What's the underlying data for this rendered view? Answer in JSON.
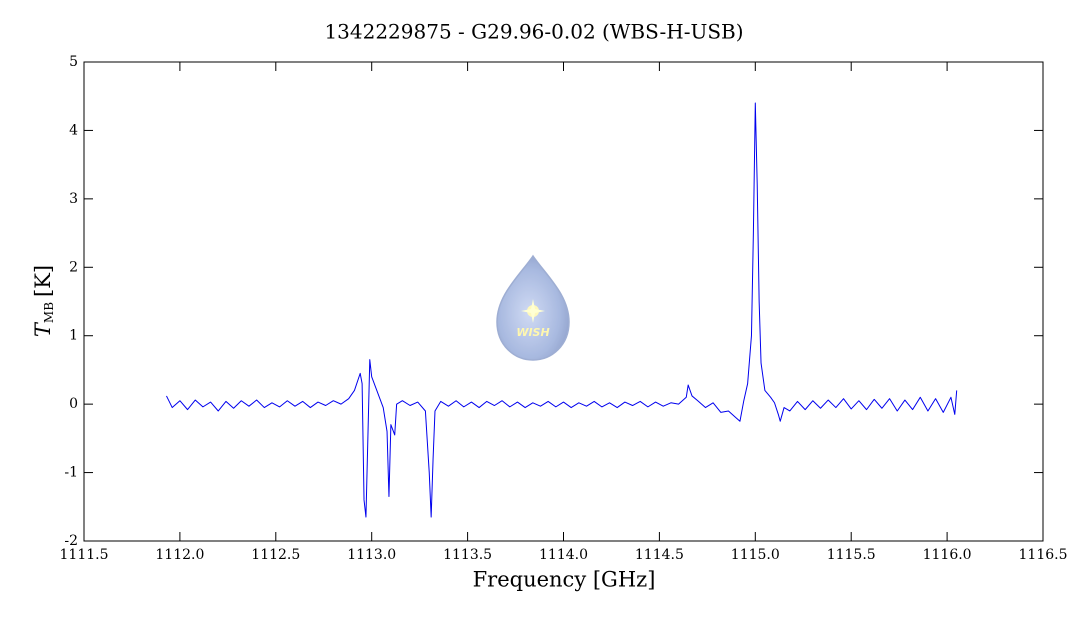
{
  "chart_data": {
    "type": "line",
    "title": "1342229875 - G29.96-0.02 (WBS-H-USB)",
    "x_label": "Frequency [GHz]",
    "y_label": {
      "symbol": "T",
      "subscript": "MB",
      "unit": "[K]"
    },
    "logo_text": "WISH",
    "xlim": [
      1111.5,
      1116.5
    ],
    "ylim": [
      -2,
      5
    ],
    "xticks": [
      1111.5,
      {
        "value": 1112,
        "label": "1112.0"
      },
      1112.5,
      {
        "value": 1113,
        "label": "1113.0"
      },
      1113.5,
      {
        "value": 1114,
        "label": "1114.0"
      },
      1114.5,
      {
        "value": 1115,
        "label": "1115.0"
      },
      1115.5,
      {
        "value": 1116,
        "label": "1116.0"
      },
      1116.5
    ],
    "yticks": [
      -2,
      -1,
      0,
      1,
      2,
      3,
      4,
      5
    ],
    "grid": false,
    "x": [
      1111.93,
      1111.96,
      1112.0,
      1112.04,
      1112.08,
      1112.12,
      1112.16,
      1112.2,
      1112.24,
      1112.28,
      1112.32,
      1112.36,
      1112.4,
      1112.44,
      1112.48,
      1112.52,
      1112.56,
      1112.6,
      1112.64,
      1112.68,
      1112.72,
      1112.76,
      1112.8,
      1112.84,
      1112.88,
      1112.91,
      1112.94,
      1112.95,
      1112.96,
      1112.97,
      1112.98,
      1112.99,
      1113.0,
      1113.02,
      1113.04,
      1113.06,
      1113.08,
      1113.09,
      1113.1,
      1113.12,
      1113.13,
      1113.16,
      1113.2,
      1113.24,
      1113.28,
      1113.3,
      1113.31,
      1113.32,
      1113.33,
      1113.36,
      1113.4,
      1113.44,
      1113.48,
      1113.52,
      1113.56,
      1113.6,
      1113.64,
      1113.68,
      1113.72,
      1113.76,
      1113.8,
      1113.84,
      1113.88,
      1113.92,
      1113.96,
      1114.0,
      1114.04,
      1114.08,
      1114.12,
      1114.16,
      1114.2,
      1114.24,
      1114.28,
      1114.32,
      1114.36,
      1114.4,
      1114.44,
      1114.48,
      1114.52,
      1114.56,
      1114.6,
      1114.64,
      1114.65,
      1114.67,
      1114.7,
      1114.74,
      1114.78,
      1114.82,
      1114.86,
      1114.9,
      1114.92,
      1114.94,
      1114.96,
      1114.98,
      1114.99,
      1115.0,
      1115.01,
      1115.02,
      1115.03,
      1115.05,
      1115.08,
      1115.1,
      1115.12,
      1115.13,
      1115.15,
      1115.18,
      1115.22,
      1115.26,
      1115.3,
      1115.34,
      1115.38,
      1115.42,
      1115.46,
      1115.5,
      1115.54,
      1115.58,
      1115.62,
      1115.66,
      1115.7,
      1115.74,
      1115.78,
      1115.82,
      1115.86,
      1115.9,
      1115.94,
      1115.98,
      1116.02,
      1116.04,
      1116.05
    ],
    "series": [
      {
        "color": "#0000ee",
        "values": [
          0.12,
          -0.05,
          0.05,
          -0.08,
          0.06,
          -0.04,
          0.03,
          -0.1,
          0.04,
          -0.06,
          0.05,
          -0.03,
          0.06,
          -0.05,
          0.02,
          -0.04,
          0.05,
          -0.03,
          0.04,
          -0.05,
          0.03,
          -0.02,
          0.05,
          0.0,
          0.08,
          0.2,
          0.45,
          0.3,
          -1.4,
          -1.65,
          -0.5,
          0.65,
          0.4,
          0.25,
          0.1,
          -0.05,
          -0.4,
          -1.35,
          -0.3,
          -0.45,
          0.0,
          0.05,
          -0.02,
          0.03,
          -0.1,
          -1.0,
          -1.65,
          -0.8,
          -0.1,
          0.04,
          -0.03,
          0.05,
          -0.04,
          0.03,
          -0.05,
          0.04,
          -0.02,
          0.05,
          -0.04,
          0.03,
          -0.05,
          0.02,
          -0.03,
          0.04,
          -0.04,
          0.03,
          -0.05,
          0.02,
          -0.03,
          0.04,
          -0.04,
          0.02,
          -0.05,
          0.03,
          -0.02,
          0.04,
          -0.04,
          0.03,
          -0.03,
          0.02,
          0.0,
          0.1,
          0.28,
          0.12,
          0.05,
          -0.05,
          0.02,
          -0.12,
          -0.1,
          -0.2,
          -0.25,
          0.05,
          0.3,
          1.0,
          2.5,
          4.4,
          3.2,
          1.5,
          0.6,
          0.2,
          0.1,
          0.02,
          -0.15,
          -0.25,
          -0.05,
          -0.1,
          0.04,
          -0.08,
          0.05,
          -0.06,
          0.06,
          -0.05,
          0.08,
          -0.07,
          0.05,
          -0.08,
          0.07,
          -0.06,
          0.08,
          -0.1,
          0.06,
          -0.08,
          0.1,
          -0.1,
          0.08,
          -0.12,
          0.1,
          -0.15,
          0.2
        ]
      }
    ]
  }
}
